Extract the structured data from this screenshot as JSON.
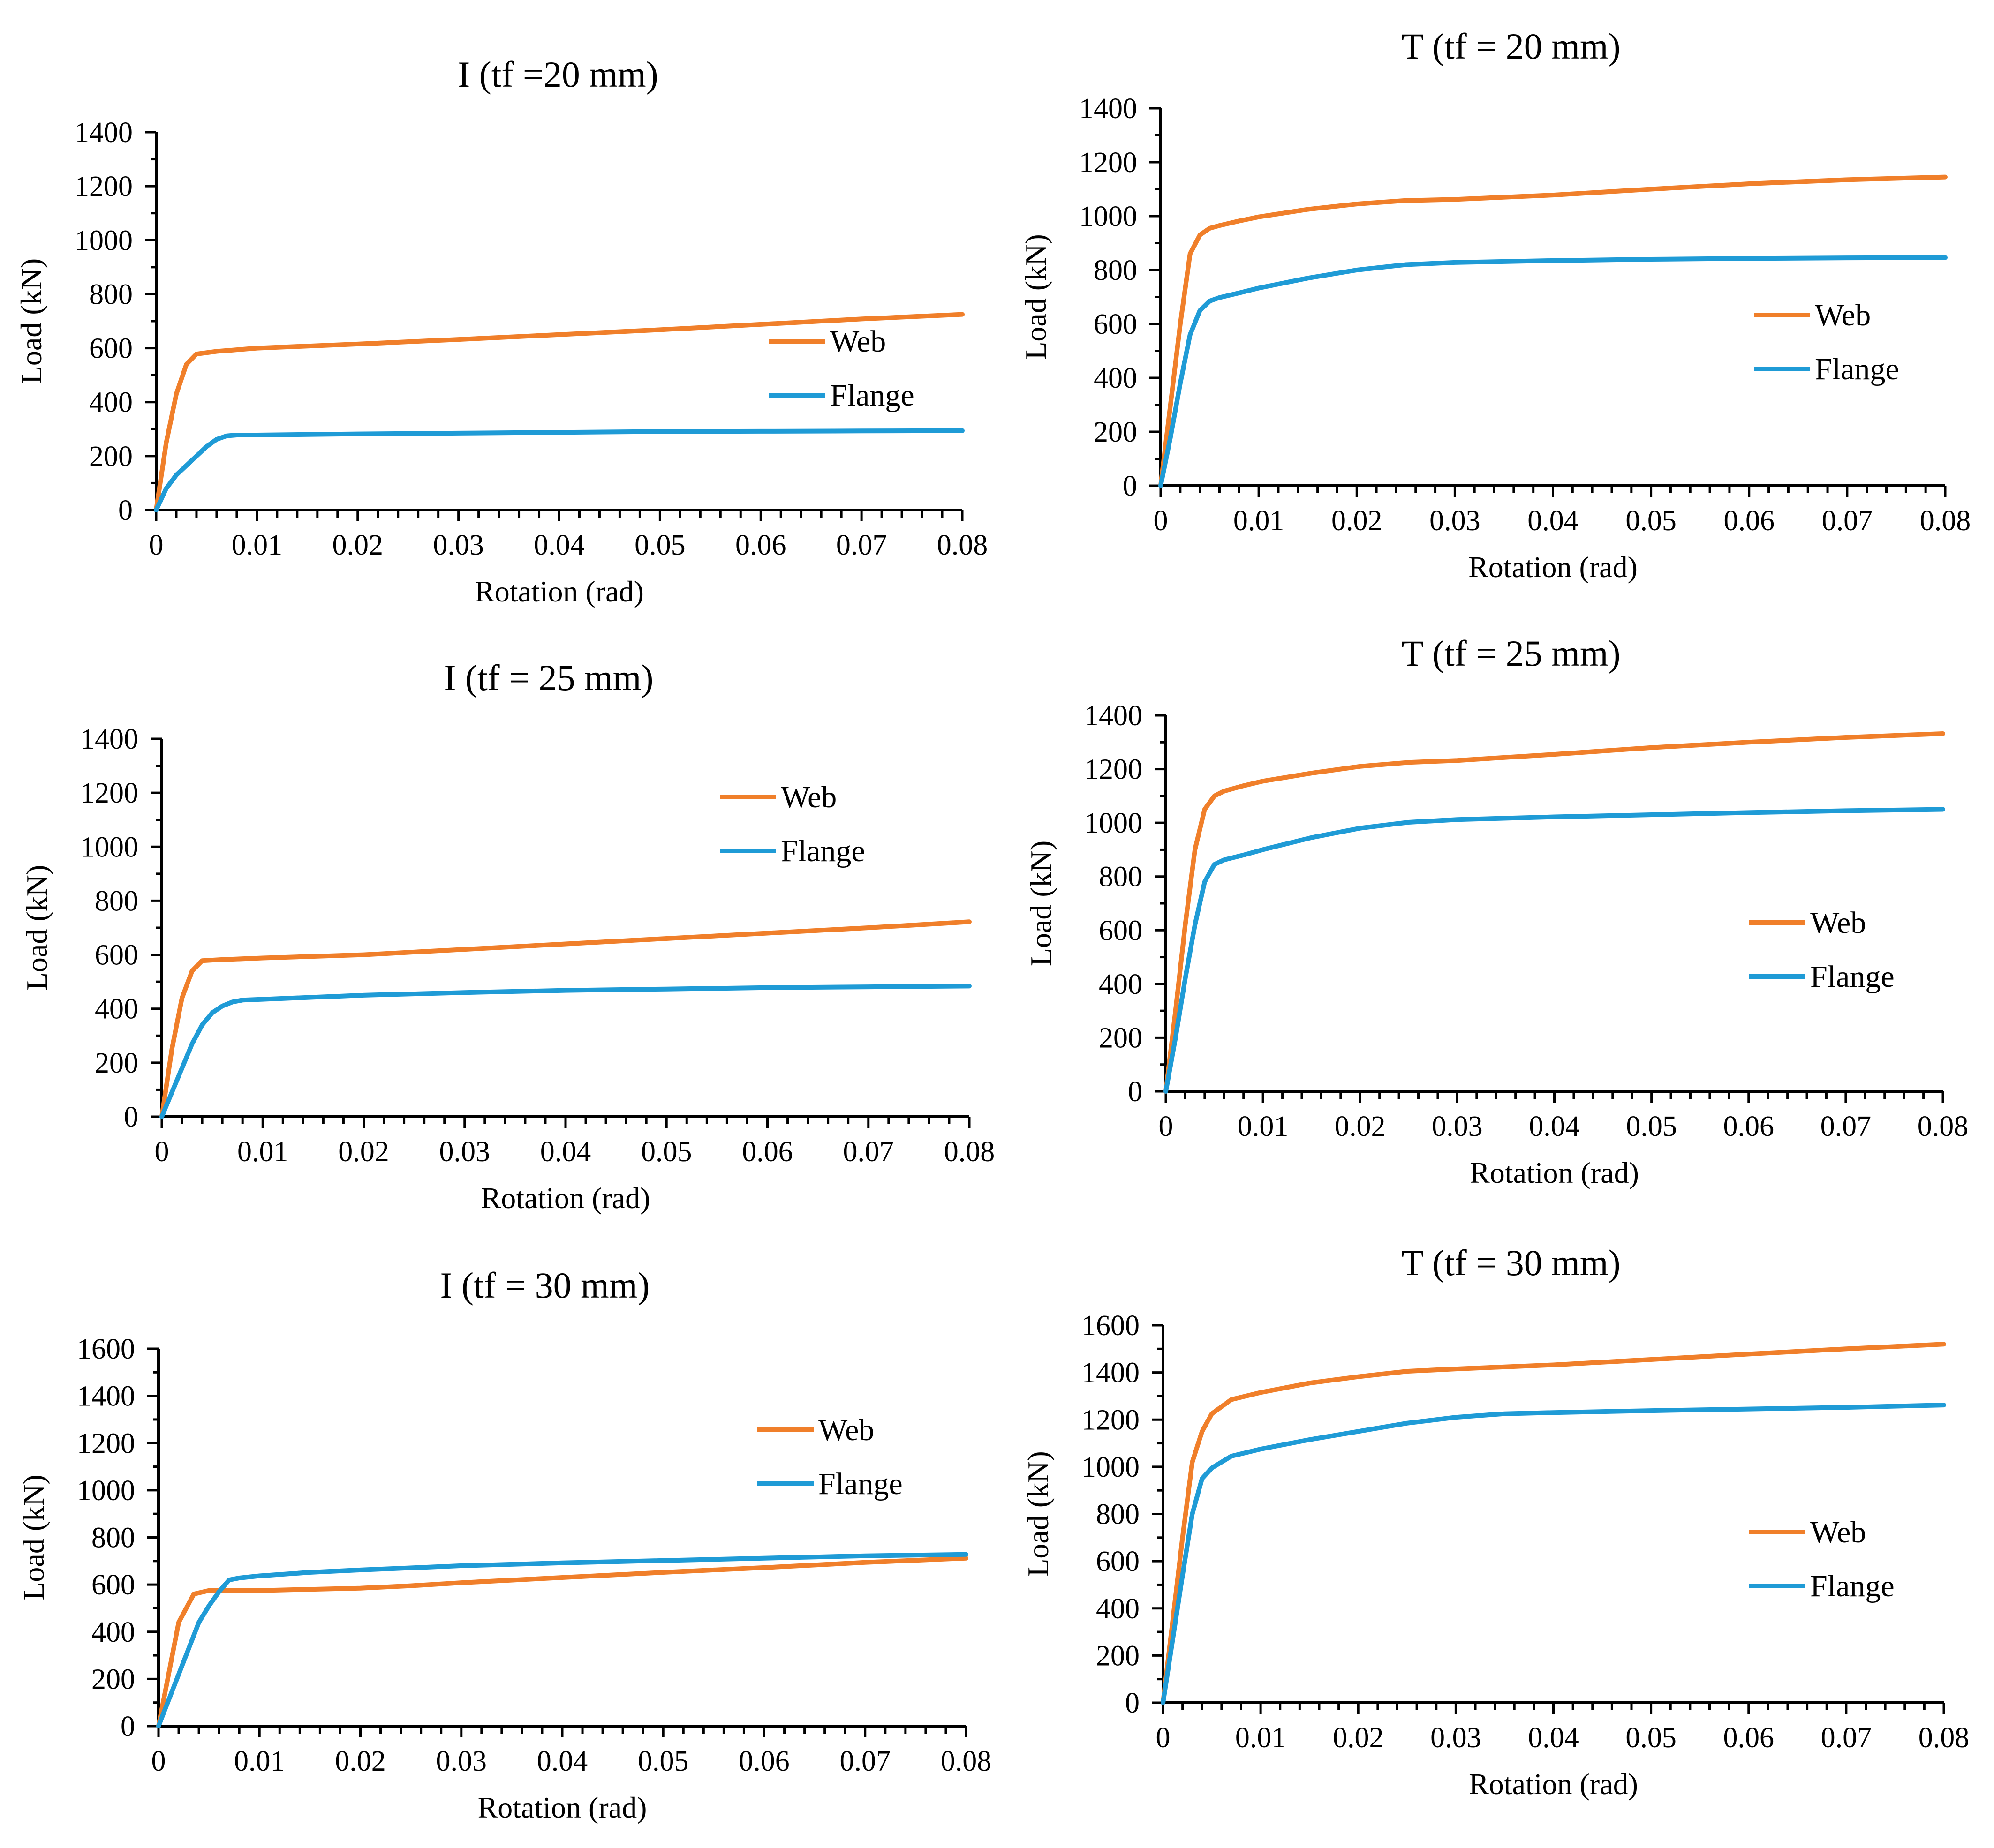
{
  "figure": {
    "colors": {
      "web": "#F07F2A",
      "flange": "#1F9BD6",
      "axis": "#000000"
    }
  },
  "chart_data": [
    {
      "type": "line",
      "title": "I (tf =20 mm)",
      "xlabel": "Rotation (rad)",
      "ylabel": "Load (kN)",
      "xlim": [
        0,
        0.08
      ],
      "ylim": [
        0,
        1400
      ],
      "xticks": [
        0,
        0.01,
        0.02,
        0.03,
        0.04,
        0.05,
        0.06,
        0.07,
        0.08
      ],
      "xtick_labels": [
        "0",
        "0.01",
        "0.02",
        "0.03",
        "0.04",
        "0.05",
        "0.06",
        "0.07",
        "0.08"
      ],
      "yticks": [
        0,
        200,
        400,
        600,
        800,
        1000,
        1200,
        1400
      ],
      "ytick_labels": [
        "0",
        "200",
        "400",
        "600",
        "800",
        "1000",
        "1200",
        "1400"
      ],
      "legend": {
        "placement": "right",
        "entries": [
          "Web",
          "Flange"
        ]
      },
      "series": [
        {
          "name": "Web",
          "color": "#F07F2A",
          "x": [
            0,
            0.001,
            0.002,
            0.003,
            0.004,
            0.006,
            0.01,
            0.02,
            0.03,
            0.04,
            0.05,
            0.06,
            0.07,
            0.08
          ],
          "y": [
            0,
            250,
            430,
            540,
            578,
            588,
            600,
            615,
            632,
            650,
            668,
            688,
            708,
            725
          ]
        },
        {
          "name": "Flange",
          "color": "#1F9BD6",
          "x": [
            0,
            0.001,
            0.002,
            0.003,
            0.004,
            0.005,
            0.006,
            0.007,
            0.008,
            0.01,
            0.02,
            0.03,
            0.04,
            0.05,
            0.06,
            0.07,
            0.08
          ],
          "y": [
            0,
            80,
            130,
            165,
            200,
            235,
            262,
            275,
            278,
            278,
            282,
            285,
            288,
            291,
            292,
            293,
            294
          ]
        }
      ]
    },
    {
      "type": "line",
      "title": "T (tf  = 20 mm)",
      "xlabel": "Rotation (rad)",
      "ylabel": "Load (kN)",
      "xlim": [
        0,
        0.08
      ],
      "ylim": [
        0,
        1400
      ],
      "xticks": [
        0,
        0.01,
        0.02,
        0.03,
        0.04,
        0.05,
        0.06,
        0.07,
        0.08
      ],
      "xtick_labels": [
        "0",
        "0.01",
        "0.02",
        "0.03",
        "0.04",
        "0.05",
        "0.06",
        "0.07",
        "0.08"
      ],
      "yticks": [
        0,
        200,
        400,
        600,
        800,
        1000,
        1200,
        1400
      ],
      "ytick_labels": [
        "0",
        "200",
        "400",
        "600",
        "800",
        "1000",
        "1200",
        "1400"
      ],
      "legend": {
        "placement": "right",
        "entries": [
          "Web",
          "Flange"
        ]
      },
      "series": [
        {
          "name": "Web",
          "color": "#F07F2A",
          "x": [
            0,
            0.001,
            0.002,
            0.003,
            0.004,
            0.005,
            0.006,
            0.008,
            0.01,
            0.015,
            0.02,
            0.025,
            0.03,
            0.04,
            0.05,
            0.06,
            0.07,
            0.08
          ],
          "y": [
            0,
            300,
            600,
            860,
            930,
            955,
            965,
            982,
            997,
            1025,
            1045,
            1058,
            1062,
            1078,
            1100,
            1120,
            1135,
            1145
          ]
        },
        {
          "name": "Flange",
          "color": "#1F9BD6",
          "x": [
            0,
            0.001,
            0.002,
            0.003,
            0.004,
            0.005,
            0.006,
            0.008,
            0.01,
            0.015,
            0.02,
            0.025,
            0.03,
            0.04,
            0.05,
            0.06,
            0.07,
            0.08
          ],
          "y": [
            0,
            180,
            380,
            560,
            650,
            685,
            698,
            715,
            733,
            770,
            800,
            820,
            828,
            835,
            840,
            843,
            845,
            846
          ]
        }
      ]
    },
    {
      "type": "line",
      "title": "I (tf = 25 mm)",
      "xlabel": "Rotation (rad)",
      "ylabel": "Load (kN)",
      "xlim": [
        0,
        0.08
      ],
      "ylim": [
        0,
        1400
      ],
      "xticks": [
        0,
        0.01,
        0.02,
        0.03,
        0.04,
        0.05,
        0.06,
        0.07,
        0.08
      ],
      "xtick_labels": [
        "0",
        "0.01",
        "0.02",
        "0.03",
        "0.04",
        "0.05",
        "0.06",
        "0.07",
        "0.08"
      ],
      "yticks": [
        0,
        200,
        400,
        600,
        800,
        1000,
        1200,
        1400
      ],
      "ytick_labels": [
        "0",
        "200",
        "400",
        "600",
        "800",
        "1000",
        "1200",
        "1400"
      ],
      "legend": {
        "placement": "top-right",
        "entries": [
          "Web",
          "Flange"
        ]
      },
      "series": [
        {
          "name": "Web",
          "color": "#F07F2A",
          "x": [
            0,
            0.001,
            0.002,
            0.003,
            0.004,
            0.006,
            0.01,
            0.02,
            0.03,
            0.04,
            0.05,
            0.06,
            0.07,
            0.08
          ],
          "y": [
            0,
            250,
            440,
            540,
            578,
            582,
            588,
            600,
            620,
            640,
            660,
            680,
            700,
            722
          ]
        },
        {
          "name": "Flange",
          "color": "#1F9BD6",
          "x": [
            0,
            0.001,
            0.002,
            0.003,
            0.004,
            0.005,
            0.006,
            0.007,
            0.008,
            0.01,
            0.02,
            0.03,
            0.04,
            0.05,
            0.06,
            0.07,
            0.08
          ],
          "y": [
            0,
            90,
            180,
            270,
            340,
            385,
            410,
            425,
            432,
            435,
            450,
            460,
            468,
            473,
            478,
            481,
            484
          ]
        }
      ]
    },
    {
      "type": "line",
      "title": "T (tf = 25 mm)",
      "xlabel": "Rotation (rad)",
      "ylabel": "Load (kN)",
      "xlim": [
        0,
        0.08
      ],
      "ylim": [
        0,
        1400
      ],
      "xticks": [
        0,
        0.01,
        0.02,
        0.03,
        0.04,
        0.05,
        0.06,
        0.07,
        0.08
      ],
      "xtick_labels": [
        "0",
        "0.01",
        "0.02",
        "0.03",
        "0.04",
        "0.05",
        "0.06",
        "0.07",
        "0.08"
      ],
      "yticks": [
        0,
        200,
        400,
        600,
        800,
        1000,
        1200,
        1400
      ],
      "ytick_labels": [
        "0",
        "200",
        "400",
        "600",
        "800",
        "1000",
        "1200",
        "1400"
      ],
      "legend": {
        "placement": "right",
        "entries": [
          "Web",
          "Flange"
        ]
      },
      "series": [
        {
          "name": "Web",
          "color": "#F07F2A",
          "x": [
            0,
            0.001,
            0.002,
            0.003,
            0.004,
            0.005,
            0.006,
            0.008,
            0.01,
            0.015,
            0.02,
            0.025,
            0.03,
            0.04,
            0.05,
            0.06,
            0.07,
            0.08
          ],
          "y": [
            0,
            300,
            620,
            900,
            1050,
            1100,
            1118,
            1138,
            1155,
            1185,
            1210,
            1225,
            1232,
            1255,
            1280,
            1300,
            1318,
            1332
          ]
        },
        {
          "name": "Flange",
          "color": "#1F9BD6",
          "x": [
            0,
            0.001,
            0.002,
            0.003,
            0.004,
            0.005,
            0.006,
            0.008,
            0.01,
            0.015,
            0.02,
            0.025,
            0.03,
            0.04,
            0.05,
            0.06,
            0.07,
            0.08
          ],
          "y": [
            0,
            200,
            420,
            620,
            780,
            845,
            862,
            880,
            900,
            945,
            980,
            1002,
            1012,
            1022,
            1030,
            1038,
            1045,
            1050
          ]
        }
      ]
    },
    {
      "type": "line",
      "title": "I (tf = 30 mm)",
      "xlabel": "Rotation (rad)",
      "ylabel": "Load (kN)",
      "xlim": [
        0,
        0.08
      ],
      "ylim": [
        0,
        1600
      ],
      "xticks": [
        0,
        0.01,
        0.02,
        0.03,
        0.04,
        0.05,
        0.06,
        0.07,
        0.08
      ],
      "xtick_labels": [
        "0",
        "0.01",
        "0.02",
        "0.03",
        "0.04",
        "0.05",
        "0.06",
        "0.07",
        "0.08"
      ],
      "yticks": [
        0,
        200,
        400,
        600,
        800,
        1000,
        1200,
        1400,
        1600
      ],
      "ytick_labels": [
        "0",
        "200",
        "400",
        "600",
        "800",
        "1000",
        "1200",
        "1400",
        "1600"
      ],
      "legend": {
        "placement": "right",
        "entries": [
          "Web",
          "Flange"
        ]
      },
      "series": [
        {
          "name": "Web",
          "color": "#F07F2A",
          "x": [
            0,
            0.002,
            0.0035,
            0.005,
            0.007,
            0.01,
            0.015,
            0.02,
            0.025,
            0.03,
            0.04,
            0.05,
            0.06,
            0.07,
            0.08
          ],
          "y": [
            0,
            440,
            560,
            575,
            575,
            575,
            580,
            585,
            595,
            608,
            630,
            652,
            672,
            694,
            712
          ]
        },
        {
          "name": "Flange",
          "color": "#1F9BD6",
          "x": [
            0,
            0.001,
            0.002,
            0.003,
            0.004,
            0.005,
            0.006,
            0.007,
            0.008,
            0.01,
            0.015,
            0.02,
            0.03,
            0.04,
            0.05,
            0.06,
            0.07,
            0.08
          ],
          "y": [
            0,
            110,
            220,
            330,
            440,
            510,
            570,
            620,
            628,
            637,
            652,
            662,
            680,
            692,
            702,
            712,
            722,
            728
          ]
        }
      ]
    },
    {
      "type": "line",
      "title": "T (tf = 30 mm)",
      "xlabel": "Rotation (rad)",
      "ylabel": "Load (kN)",
      "xlim": [
        0,
        0.08
      ],
      "ylim": [
        0,
        1600
      ],
      "xticks": [
        0,
        0.01,
        0.02,
        0.03,
        0.04,
        0.05,
        0.06,
        0.07,
        0.08
      ],
      "xtick_labels": [
        "0",
        "0.01",
        "0.02",
        "0.03",
        "0.04",
        "0.05",
        "0.06",
        "0.07",
        "0.08"
      ],
      "yticks": [
        0,
        200,
        400,
        600,
        800,
        1000,
        1200,
        1400,
        1600
      ],
      "ytick_labels": [
        "0",
        "200",
        "400",
        "600",
        "800",
        "1000",
        "1200",
        "1400",
        "1600"
      ],
      "legend": {
        "placement": "right",
        "entries": [
          "Web",
          "Flange"
        ]
      },
      "series": [
        {
          "name": "Web",
          "color": "#F07F2A",
          "x": [
            0,
            0.001,
            0.002,
            0.003,
            0.004,
            0.005,
            0.007,
            0.01,
            0.015,
            0.02,
            0.025,
            0.03,
            0.04,
            0.05,
            0.06,
            0.07,
            0.08
          ],
          "y": [
            0,
            350,
            700,
            1020,
            1150,
            1225,
            1285,
            1315,
            1355,
            1382,
            1405,
            1415,
            1432,
            1455,
            1478,
            1500,
            1520
          ]
        },
        {
          "name": "Flange",
          "color": "#1F9BD6",
          "x": [
            0,
            0.001,
            0.002,
            0.003,
            0.004,
            0.005,
            0.007,
            0.01,
            0.015,
            0.02,
            0.025,
            0.03,
            0.035,
            0.04,
            0.05,
            0.06,
            0.07,
            0.08
          ],
          "y": [
            0,
            270,
            540,
            800,
            950,
            995,
            1045,
            1075,
            1115,
            1150,
            1185,
            1210,
            1225,
            1230,
            1238,
            1245,
            1252,
            1262
          ]
        }
      ]
    }
  ]
}
